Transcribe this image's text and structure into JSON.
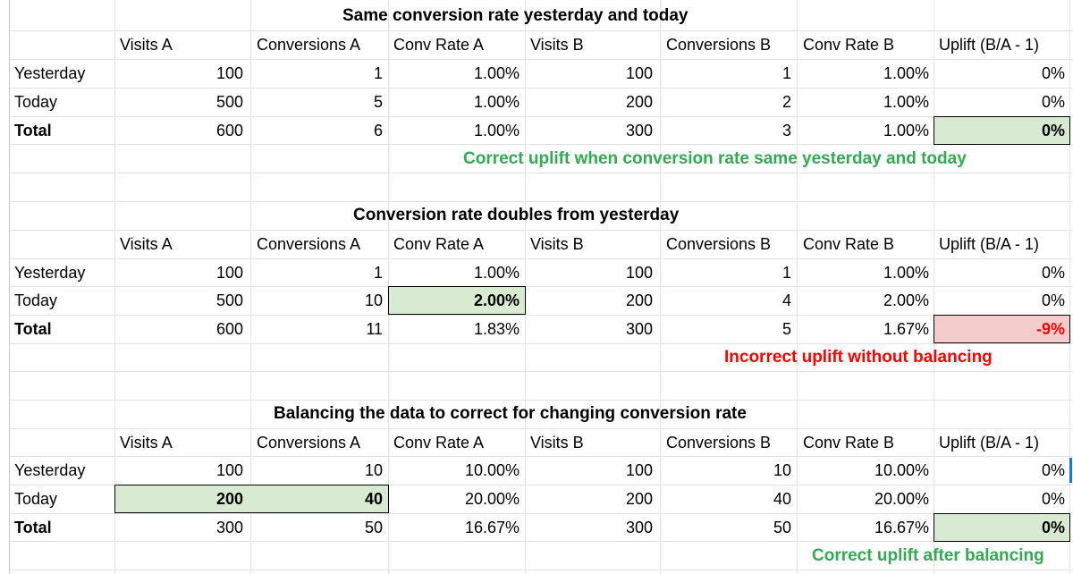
{
  "colors": {
    "correct_note": "#34a853",
    "incorrect_note": "#ff0000",
    "highlight_green": "#d9ead3",
    "highlight_red": "#f4cccc",
    "gridline": "#e2e2e2",
    "red_text": "#ff0000"
  },
  "headers": {
    "visits_a": "Visits A",
    "conversions_a": "Conversions A",
    "conv_rate_a": "Conv Rate A",
    "visits_b": "Visits B",
    "conversions_b": "Conversions B",
    "conv_rate_b": "Conv Rate B",
    "uplift": "Uplift (B/A - 1)"
  },
  "sections": [
    {
      "title": "Same conversion rate yesterday and today",
      "rows": [
        {
          "label": "Yesterday",
          "visits_a": "100",
          "conversions_a": "1",
          "conv_rate_a": "1.00%",
          "visits_b": "100",
          "conversions_b": "1",
          "conv_rate_b": "1.00%",
          "uplift": "0%"
        },
        {
          "label": "Today",
          "visits_a": "500",
          "conversions_a": "5",
          "conv_rate_a": "1.00%",
          "visits_b": "200",
          "conversions_b": "2",
          "conv_rate_b": "1.00%",
          "uplift": "0%"
        },
        {
          "label": "Total",
          "visits_a": "600",
          "conversions_a": "6",
          "conv_rate_a": "1.00%",
          "visits_b": "300",
          "conversions_b": "3",
          "conv_rate_b": "1.00%",
          "uplift": "0%"
        }
      ],
      "note": "Correct uplift when conversion rate same yesterday and today"
    },
    {
      "title": "Conversion rate doubles from yesterday",
      "rows": [
        {
          "label": "Yesterday",
          "visits_a": "100",
          "conversions_a": "1",
          "conv_rate_a": "1.00%",
          "visits_b": "100",
          "conversions_b": "1",
          "conv_rate_b": "1.00%",
          "uplift": "0%"
        },
        {
          "label": "Today",
          "visits_a": "500",
          "conversions_a": "10",
          "conv_rate_a": "2.00%",
          "visits_b": "200",
          "conversions_b": "4",
          "conv_rate_b": "2.00%",
          "uplift": "0%"
        },
        {
          "label": "Total",
          "visits_a": "600",
          "conversions_a": "11",
          "conv_rate_a": "1.83%",
          "visits_b": "300",
          "conversions_b": "5",
          "conv_rate_b": "1.67%",
          "uplift": "-9%"
        }
      ],
      "note": "Incorrect uplift without balancing"
    },
    {
      "title": "Balancing the data to correct for changing conversion rate",
      "rows": [
        {
          "label": "Yesterday",
          "visits_a": "100",
          "conversions_a": "10",
          "conv_rate_a": "10.00%",
          "visits_b": "100",
          "conversions_b": "10",
          "conv_rate_b": "10.00%",
          "uplift": "0%"
        },
        {
          "label": "Today",
          "visits_a": "200",
          "conversions_a": "40",
          "conv_rate_a": "20.00%",
          "visits_b": "200",
          "conversions_b": "40",
          "conv_rate_b": "20.00%",
          "uplift": "0%"
        },
        {
          "label": "Total",
          "visits_a": "300",
          "conversions_a": "50",
          "conv_rate_a": "16.67%",
          "visits_b": "300",
          "conversions_b": "50",
          "conv_rate_b": "16.67%",
          "uplift": "0%"
        }
      ],
      "note": "Correct uplift after balancing"
    }
  ]
}
